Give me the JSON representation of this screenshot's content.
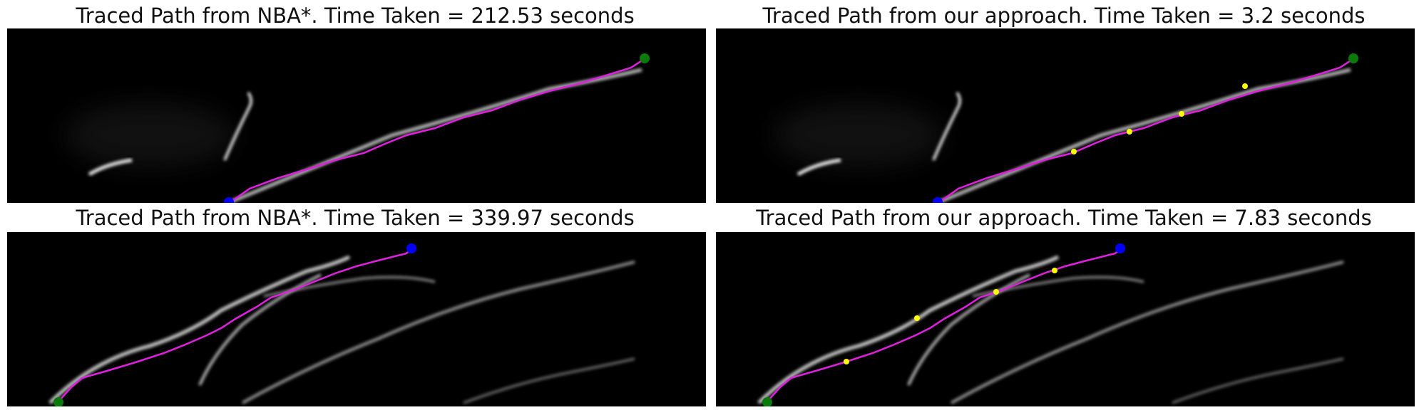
{
  "colors": {
    "background": "#000000",
    "path": "#e020e0",
    "start_marker": "#0000ff",
    "end_marker": "#0a7a0a",
    "waypoint_marker": "#ffff00",
    "dendrite": "#d8d8d8"
  },
  "panels": [
    {
      "id": "top-left",
      "title": "Traced Path from NBA*. Time Taken = 212.53 seconds",
      "method": "NBA*",
      "time_seconds": 212.53
    },
    {
      "id": "top-right",
      "title": "Traced Path from our approach. Time Taken = 3.2 seconds",
      "method": "our approach",
      "time_seconds": 3.2
    },
    {
      "id": "bottom-left",
      "title": "Traced Path from NBA*. Time Taken = 339.97 seconds",
      "method": "NBA*",
      "time_seconds": 339.97
    },
    {
      "id": "bottom-right",
      "title": "Traced Path from our approach. Time Taken = 7.83 seconds",
      "method": "our approach",
      "time_seconds": 7.83
    }
  ]
}
